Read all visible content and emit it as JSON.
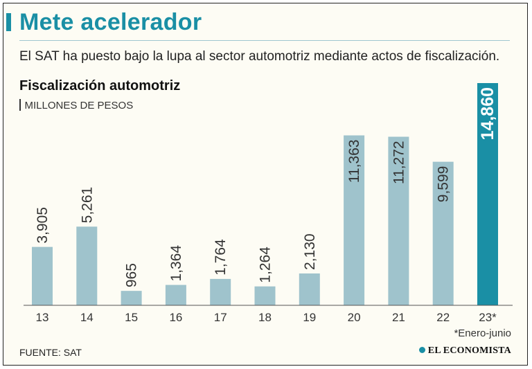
{
  "header": {
    "title": "Mete acelerador",
    "subtitle": "El SAT ha puesto bajo la lupa al sector automotriz mediante actos de fiscalización."
  },
  "colors": {
    "accent": "#1a8fa5",
    "bar": "#9fc3cc",
    "highlight_bar": "#1a8fa5"
  },
  "chart_data": {
    "type": "bar",
    "title": "Fiscalización automotriz",
    "units": "MILLONES DE PESOS",
    "categories": [
      "13",
      "14",
      "15",
      "16",
      "17",
      "18",
      "19",
      "20",
      "21",
      "22",
      "23*"
    ],
    "values": [
      3905,
      5261,
      965,
      1364,
      1764,
      1264,
      2130,
      11363,
      11272,
      9599,
      14860
    ],
    "value_labels": [
      "3,905",
      "5,261",
      "965",
      "1,364",
      "1,764",
      "1,264",
      "2,130",
      "11,363",
      "11,272",
      "9,599",
      "14,860"
    ],
    "highlight_index": 10,
    "ylim": [
      0,
      14860
    ],
    "xlabel": "",
    "ylabel": ""
  },
  "footer": {
    "footnote": "*Enero-junio",
    "source": "FUENTE: SAT",
    "logo_text": "EL ECONOMISTA"
  }
}
